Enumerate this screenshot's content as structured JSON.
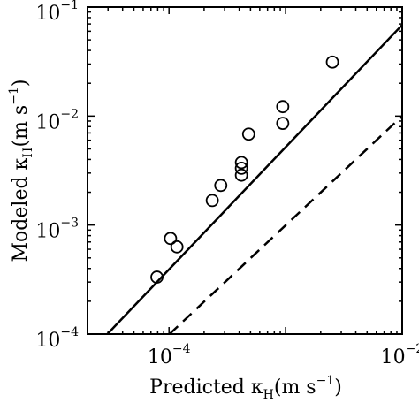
{
  "chart_data": {
    "type": "scatter",
    "title": "",
    "xlabel": {
      "pre": "Predicted ",
      "kappa": "κ",
      "sub": "H",
      "units_open": "(m s",
      "units_exp": "−1",
      "units_close": ")"
    },
    "ylabel": {
      "pre": "Modeled ",
      "kappa": "κ",
      "sub": "H",
      "units_open": "(m s",
      "units_exp": "−1",
      "units_close": ")"
    },
    "x_scale": "log",
    "y_scale": "log",
    "xlim": [
      2e-05,
      0.01
    ],
    "ylim": [
      0.0001,
      0.1
    ],
    "x_ticks": [
      {
        "value": 0.0001,
        "base": "10",
        "exp": "−4"
      },
      {
        "value": 0.01,
        "base": "10",
        "exp": "−2"
      }
    ],
    "y_ticks": [
      {
        "value": 0.0001,
        "base": "10",
        "exp": "−4"
      },
      {
        "value": 0.001,
        "base": "10",
        "exp": "−3"
      },
      {
        "value": 0.01,
        "base": "10",
        "exp": "−2"
      },
      {
        "value": 0.1,
        "base": "10",
        "exp": "−1"
      }
    ],
    "grid": false,
    "series": [
      {
        "marker": "open-circle",
        "color": "#000000",
        "points": [
          {
            "x": 7.88e-05,
            "y": 0.000333
          },
          {
            "x": 0.000103,
            "y": 0.000754
          },
          {
            "x": 0.000117,
            "y": 0.000631
          },
          {
            "x": 0.000235,
            "y": 0.00168
          },
          {
            "x": 0.000278,
            "y": 0.00231
          },
          {
            "x": 0.000418,
            "y": 0.00287
          },
          {
            "x": 0.000418,
            "y": 0.00332
          },
          {
            "x": 0.000418,
            "y": 0.00375
          },
          {
            "x": 0.000482,
            "y": 0.00683
          },
          {
            "x": 0.000945,
            "y": 0.00857
          },
          {
            "x": 0.000945,
            "y": 0.0122
          },
          {
            "x": 0.00252,
            "y": 0.0313
          }
        ]
      }
    ],
    "lines": [
      {
        "style": "solid",
        "color": "#000000",
        "x": [
          2.96e-05,
          0.01
        ],
        "y": [
          0.0001,
          0.0686
        ]
      },
      {
        "style": "dashed",
        "color": "#000000",
        "x": [
          0.000101,
          0.01
        ],
        "y": [
          0.0001,
          0.01
        ]
      }
    ]
  }
}
